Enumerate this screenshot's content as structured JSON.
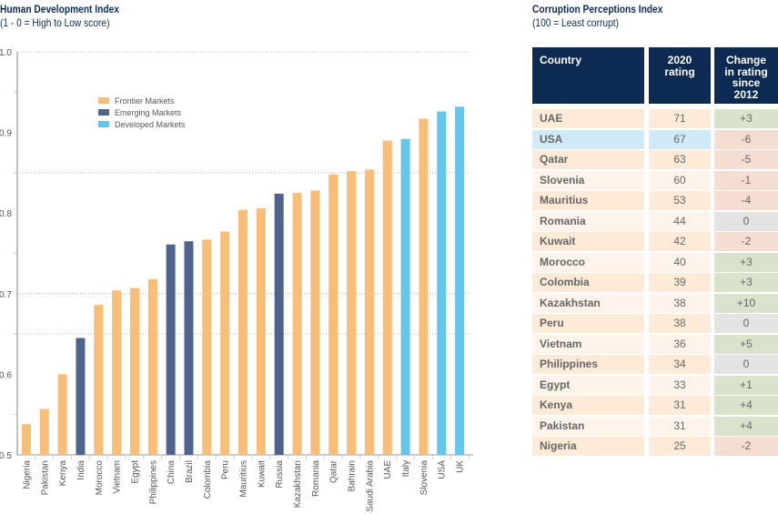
{
  "chart_data": {
    "type": "bar",
    "title": "Human Development Index",
    "subtitle": "(1 - 0 = High to Low score)",
    "ylim": [
      0.5,
      1.0
    ],
    "yticks": [
      "0.5",
      "0.6",
      "0.7",
      "0.8",
      "0.9",
      "1.0"
    ],
    "categories": [
      "Nigeria",
      "Pakistan",
      "Kenya",
      "India",
      "Morocco",
      "Vietnam",
      "Egypt",
      "Philippines",
      "China",
      "Brazil",
      "Colombia",
      "Peru",
      "Mauritius",
      "Kuwait",
      "Russia",
      "Kazakhstan",
      "Romania",
      "Qatar",
      "Bahrain",
      "Saudi Arabia",
      "UAE",
      "Italy",
      "Slovenia",
      "USA",
      "UK"
    ],
    "values": [
      0.538,
      0.557,
      0.6,
      0.645,
      0.686,
      0.704,
      0.707,
      0.718,
      0.761,
      0.765,
      0.767,
      0.777,
      0.804,
      0.806,
      0.824,
      0.825,
      0.828,
      0.848,
      0.852,
      0.854,
      0.89,
      0.892,
      0.917,
      0.926,
      0.932
    ],
    "groups": [
      "F",
      "F",
      "F",
      "E",
      "F",
      "F",
      "F",
      "F",
      "E",
      "E",
      "F",
      "F",
      "F",
      "F",
      "E",
      "F",
      "F",
      "F",
      "F",
      "F",
      "F",
      "D",
      "F",
      "D",
      "D"
    ],
    "legend": [
      {
        "key": "F",
        "name": "Frontier Markets",
        "color": "#f8bd76"
      },
      {
        "key": "E",
        "name": "Emerging Markets",
        "color": "#4f648c"
      },
      {
        "key": "D",
        "name": "Developed Markets",
        "color": "#63c6ea"
      }
    ],
    "legend_placement": "top-left",
    "grid": true
  },
  "cpi": {
    "title": "Corruption Perceptions Index",
    "subtitle": "(100 = Least corrupt)",
    "headers": [
      "Country",
      "2020\nrating",
      "Change\nin rating\nsince\n2012"
    ],
    "rows": [
      [
        "UAE",
        "71",
        "+3"
      ],
      [
        "USA",
        "67",
        "-6"
      ],
      [
        "Qatar",
        "63",
        "-5"
      ],
      [
        "Slovenia",
        "60",
        "-1"
      ],
      [
        "Mauritius",
        "53",
        "-4"
      ],
      [
        "Romania",
        "44",
        "0"
      ],
      [
        "Kuwait",
        "42",
        "-2"
      ],
      [
        "Morocco",
        "40",
        "+3"
      ],
      [
        "Colombia",
        "39",
        "+3"
      ],
      [
        "Kazakhstan",
        "38",
        "+10"
      ],
      [
        "Peru",
        "38",
        "0"
      ],
      [
        "Vietnam",
        "36",
        "+5"
      ],
      [
        "Philippines",
        "34",
        "0"
      ],
      [
        "Egypt",
        "33",
        "+1"
      ],
      [
        "Kenya",
        "31",
        "+4"
      ],
      [
        "Pakistan",
        "31",
        "+4"
      ],
      [
        "Nigeria",
        "25",
        "-2"
      ]
    ],
    "colors": {
      "header": "#0d2b52",
      "row_odd": "#fdebd7",
      "row_even": "#fef4ec",
      "highlight": "#d0e9f7",
      "positive": "#d9e3cc",
      "negative": "#f5ddd1",
      "neutral": "#e3e3e3"
    }
  }
}
